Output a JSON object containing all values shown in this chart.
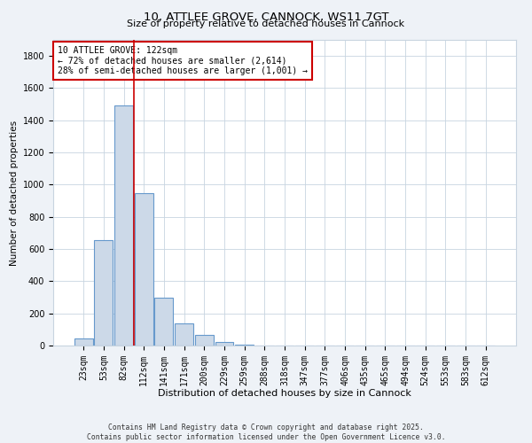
{
  "title_line1": "10, ATTLEE GROVE, CANNOCK, WS11 7GT",
  "title_line2": "Size of property relative to detached houses in Cannock",
  "xlabel": "Distribution of detached houses by size in Cannock",
  "ylabel": "Number of detached properties",
  "bar_labels": [
    "23sqm",
    "53sqm",
    "82sqm",
    "112sqm",
    "141sqm",
    "171sqm",
    "200sqm",
    "229sqm",
    "259sqm",
    "288sqm",
    "318sqm",
    "347sqm",
    "377sqm",
    "406sqm",
    "435sqm",
    "465sqm",
    "494sqm",
    "524sqm",
    "553sqm",
    "583sqm",
    "612sqm"
  ],
  "bar_values": [
    45,
    655,
    1490,
    950,
    295,
    135,
    65,
    20,
    5,
    0,
    0,
    0,
    0,
    0,
    0,
    0,
    0,
    0,
    0,
    0,
    0
  ],
  "bar_color": "#ccd9e8",
  "bar_edgecolor": "#6699cc",
  "ylim": [
    0,
    1900
  ],
  "yticks": [
    0,
    200,
    400,
    600,
    800,
    1000,
    1200,
    1400,
    1600,
    1800
  ],
  "vline_x": 2.5,
  "vline_color": "#cc0000",
  "annotation_line1": "10 ATTLEE GROVE: 122sqm",
  "annotation_line2": "← 72% of detached houses are smaller (2,614)",
  "annotation_line3": "28% of semi-detached houses are larger (1,001) →",
  "annotation_box_color": "#ffffff",
  "annotation_box_edgecolor": "#cc0000",
  "footer_line1": "Contains HM Land Registry data © Crown copyright and database right 2025.",
  "footer_line2": "Contains public sector information licensed under the Open Government Licence v3.0.",
  "background_color": "#eef2f7",
  "plot_bg_color": "#ffffff",
  "grid_color": "#c8d4e0",
  "title_fontsize": 9.5,
  "subtitle_fontsize": 8,
  "xlabel_fontsize": 8,
  "ylabel_fontsize": 7.5,
  "tick_fontsize": 7,
  "annot_fontsize": 7,
  "footer_fontsize": 5.8
}
